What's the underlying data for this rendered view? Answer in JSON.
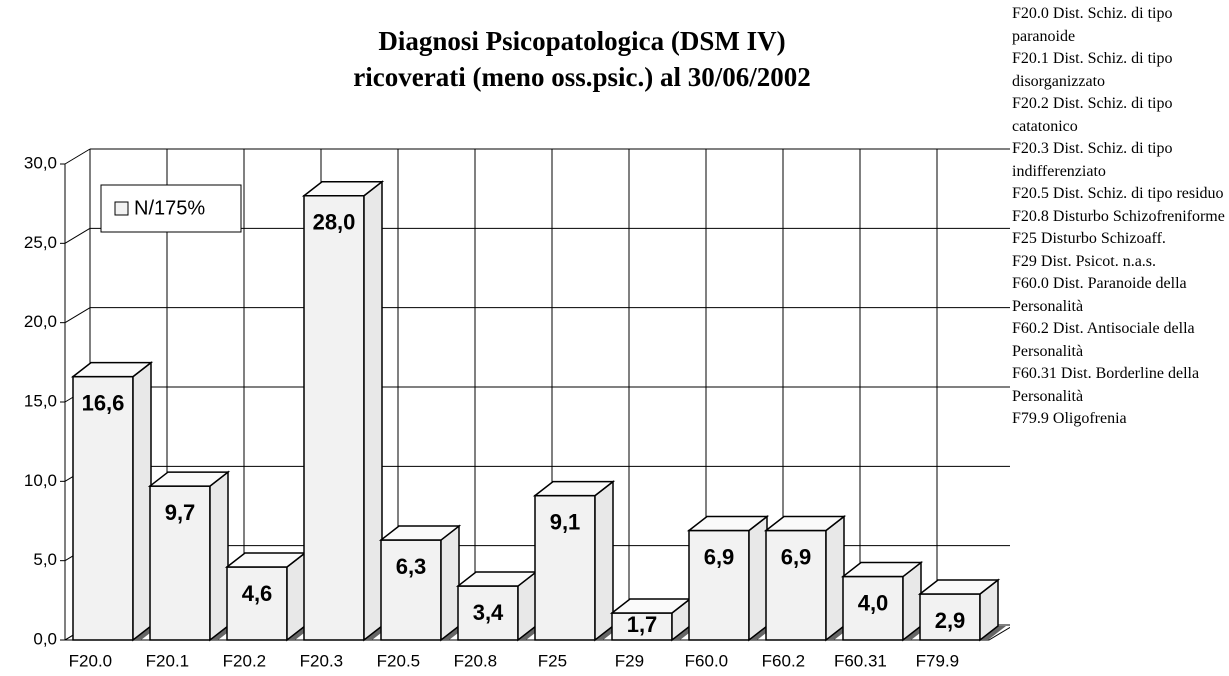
{
  "chart_data": {
    "type": "bar3d",
    "title": "Diagnosi Psicopatologica (DSM IV)",
    "subtitle": "ricoverati (meno oss.psic.) al 30/06/2002",
    "categories": [
      "F20.0",
      "F20.1",
      "F20.2",
      "F20.3",
      "F20.5",
      "F20.8",
      "F25",
      "F29",
      "F60.0",
      "F60.2",
      "F60.31",
      "F79.9"
    ],
    "series": [
      {
        "name": "N/175%",
        "color": "#f2f2f2",
        "values": [
          16.6,
          9.7,
          4.6,
          28.0,
          6.3,
          3.4,
          9.1,
          1.7,
          6.9,
          6.9,
          4.0,
          2.9
        ],
        "value_labels": [
          "16,6",
          "9,7",
          "4,6",
          "28,0",
          "6,3",
          "3,4",
          "9,1",
          "1,7",
          "6,9",
          "6,9",
          "4,0",
          "2,9"
        ]
      }
    ],
    "ylim": [
      0,
      30
    ],
    "yticks": [
      {
        "value": 0,
        "label": "0,0"
      },
      {
        "value": 5,
        "label": "5,0"
      },
      {
        "value": 10,
        "label": "10,0"
      },
      {
        "value": 15,
        "label": "15,0"
      },
      {
        "value": 20,
        "label": "20,0"
      },
      {
        "value": 25,
        "label": "25,0"
      },
      {
        "value": 30,
        "label": "30,0"
      }
    ],
    "grid": true,
    "legend": "top-left",
    "notes": [
      "F20.0 Dist. Schiz. di tipo paranoide",
      "F20.1 Dist. Schiz. di tipo disorganizzato",
      "F20.2 Dist. Schiz. di tipo catatonico",
      "F20.3 Dist. Schiz. di tipo indifferenziato",
      "F20.5 Dist. Schiz. di tipo residuo",
      "F20.8 Disturbo Schizofreniforme",
      "F25 Disturbo Schizoaff.",
      "F29 Dist. Psicot. n.a.s.",
      "F60.0 Dist. Paranoide della Personalità",
      "F60.2 Dist. Antisociale della Personalità",
      "F60.31 Dist. Borderline della Personalità",
      "F79.9 Oligofrenia"
    ]
  }
}
